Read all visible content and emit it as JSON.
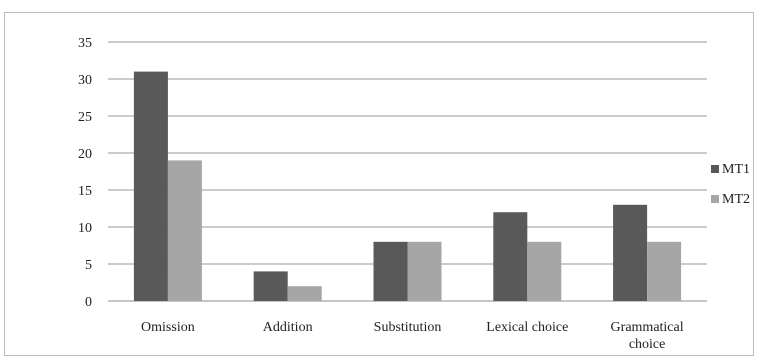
{
  "chart_data": {
    "type": "bar",
    "categories": [
      [
        "Omission"
      ],
      [
        "Addition"
      ],
      [
        "Substitution"
      ],
      [
        "Lexical choice"
      ],
      [
        "Grammatical",
        "choice"
      ]
    ],
    "series": [
      {
        "name": "MT1",
        "color": "#595959",
        "values": [
          31,
          4,
          8,
          12,
          13
        ]
      },
      {
        "name": "MT2",
        "color": "#a6a6a6",
        "values": [
          19,
          2,
          8,
          8,
          8
        ]
      }
    ],
    "ylim": [
      0,
      35
    ],
    "yticks": [
      0,
      5,
      10,
      15,
      20,
      25,
      30,
      35
    ],
    "grid": true,
    "legend_position": "right"
  }
}
